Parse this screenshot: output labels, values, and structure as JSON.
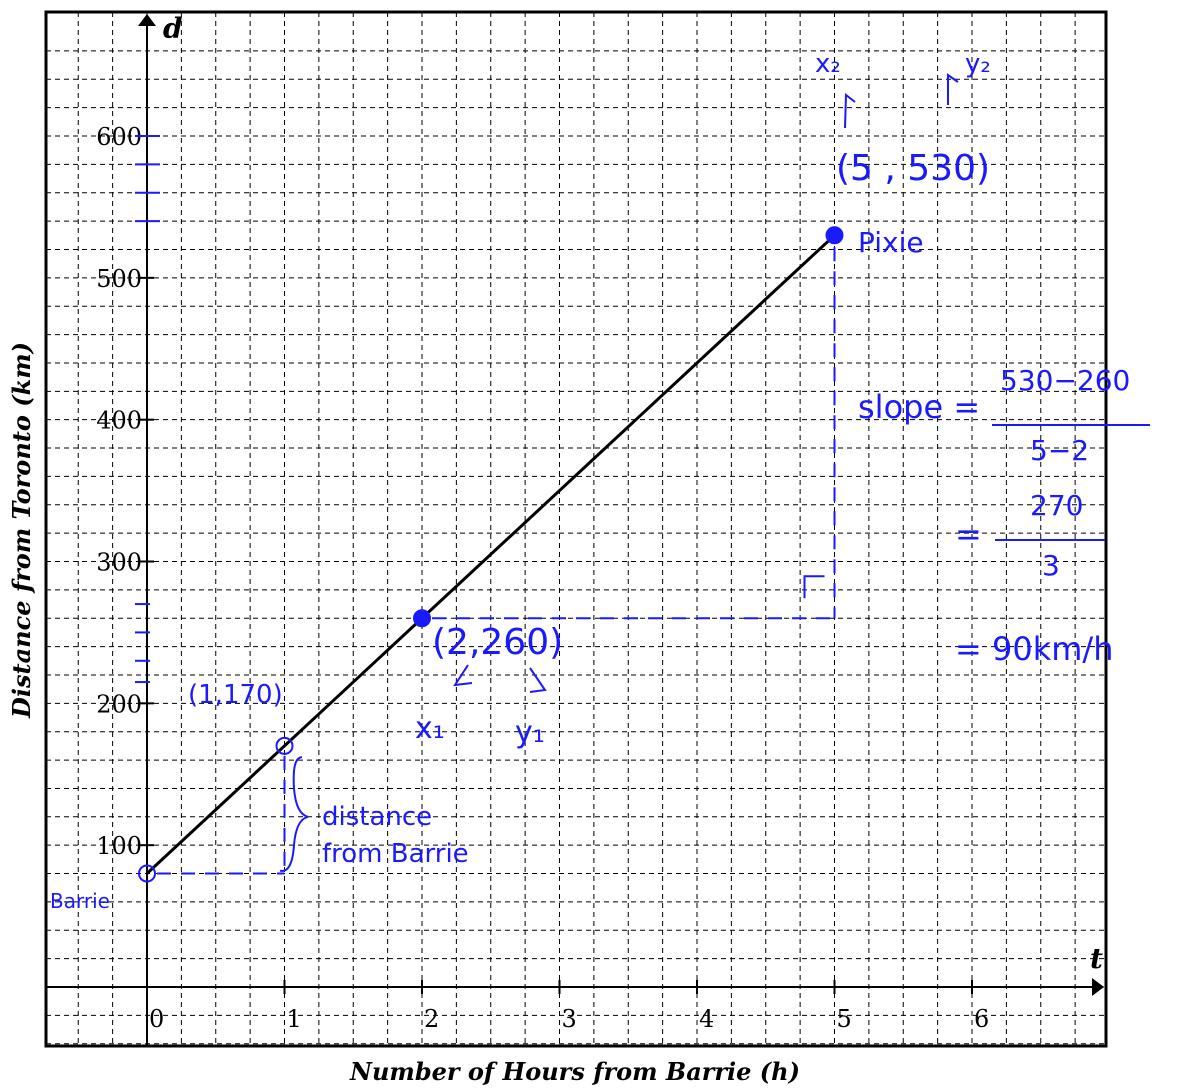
{
  "chart_data": {
    "type": "line",
    "xlabel": "Number of Hours from Barrie (h)",
    "ylabel": "Distance from Toronto (km)",
    "x_axis_var": "t",
    "y_axis_var": "d",
    "xlim": [
      -0.7,
      6.9
    ],
    "ylim": [
      -50,
      675
    ],
    "x_ticks": [
      {
        "value": 0,
        "label": "0"
      },
      {
        "value": 1,
        "label": "1"
      },
      {
        "value": 2,
        "label": "2"
      },
      {
        "value": 3,
        "label": "3"
      },
      {
        "value": 4,
        "label": "4"
      },
      {
        "value": 5,
        "label": "5"
      },
      {
        "value": 6,
        "label": "6"
      }
    ],
    "y_ticks": [
      {
        "value": 100,
        "label": "100"
      },
      {
        "value": 200,
        "label": "200"
      },
      {
        "value": 300,
        "label": "300"
      },
      {
        "value": 400,
        "label": "400"
      },
      {
        "value": 500,
        "label": "500"
      },
      {
        "value": 600,
        "label": "600"
      }
    ],
    "grid": true,
    "series": [
      {
        "x": [
          0,
          5
        ],
        "y": [
          80,
          530
        ],
        "color": "#000000"
      }
    ],
    "points": [
      {
        "x": 0,
        "y": 80,
        "style": "open"
      },
      {
        "x": 1,
        "y": 170,
        "style": "open"
      },
      {
        "x": 2,
        "y": 260,
        "style": "filled"
      },
      {
        "x": 5,
        "y": 530,
        "style": "filled"
      }
    ],
    "annotations": {
      "barrie": "Barrie",
      "p1_label": "(1,170)",
      "p2_label": "(2,260)",
      "p2_x": "x₁",
      "p2_y": "y₁",
      "p5_label": "(5 , 530)",
      "p5_x": "x₂",
      "p5_y": "y₂",
      "pixie": "Pixie",
      "bracket_line1": "distance",
      "bracket_line2": "from Barrie",
      "slope_label": "slope =",
      "slope_num": "530−260",
      "slope_den": "5−2",
      "eq2": "=",
      "eq2_num": "270",
      "eq2_den": "3",
      "result": "= 90km/h"
    },
    "annotation_color": "#1a1aff"
  }
}
